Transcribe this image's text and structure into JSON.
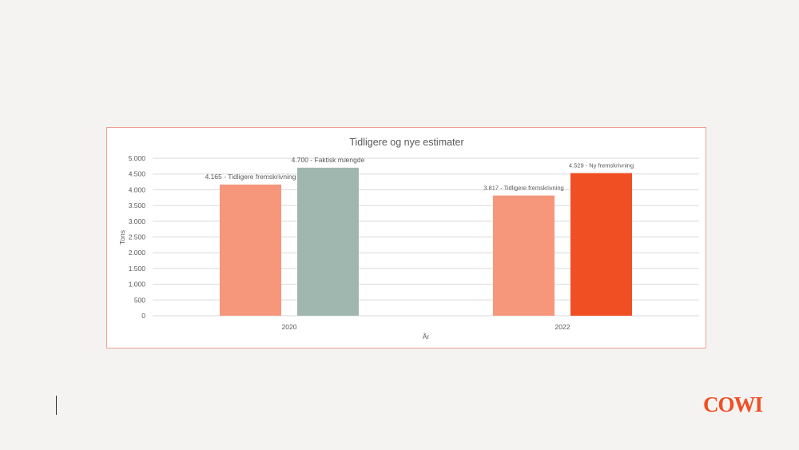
{
  "chart_data": {
    "type": "bar",
    "title": "Tidligere og nye estimater",
    "xlabel": "År",
    "ylabel": "Tons",
    "ylim": [
      0,
      5000
    ],
    "yticks": [
      0,
      500,
      1000,
      1500,
      2000,
      2500,
      3000,
      3500,
      4000,
      4500,
      5000
    ],
    "ytick_labels": [
      "0",
      "500",
      "1.000",
      "1.500",
      "2.000",
      "2.500",
      "3.000",
      "3.500",
      "4.000",
      "4.500",
      "5.000"
    ],
    "grid": true,
    "categories": [
      "2020",
      "2022"
    ],
    "bars": [
      {
        "category": "2020",
        "value": 4165,
        "label": "4.165 - Tidligere fremskrivning",
        "color": "#f6967b"
      },
      {
        "category": "2020",
        "value": 4700,
        "label": "4.700 - Faktisk mængde",
        "color": "#9fb7ae"
      },
      {
        "category": "2022",
        "value": 3817,
        "label": "3.817 - Tidligere fremskrivning",
        "color": "#f6967b"
      },
      {
        "category": "2022",
        "value": 4529,
        "label": "4.529 - Ny fremskrivning",
        "color": "#f04e23"
      }
    ]
  },
  "logo": {
    "text": "COWI",
    "color": "#f04e23"
  },
  "colors": {
    "gridline": "#d9d9d9",
    "frame": "#f0a090",
    "background": "#f4f3f1"
  }
}
